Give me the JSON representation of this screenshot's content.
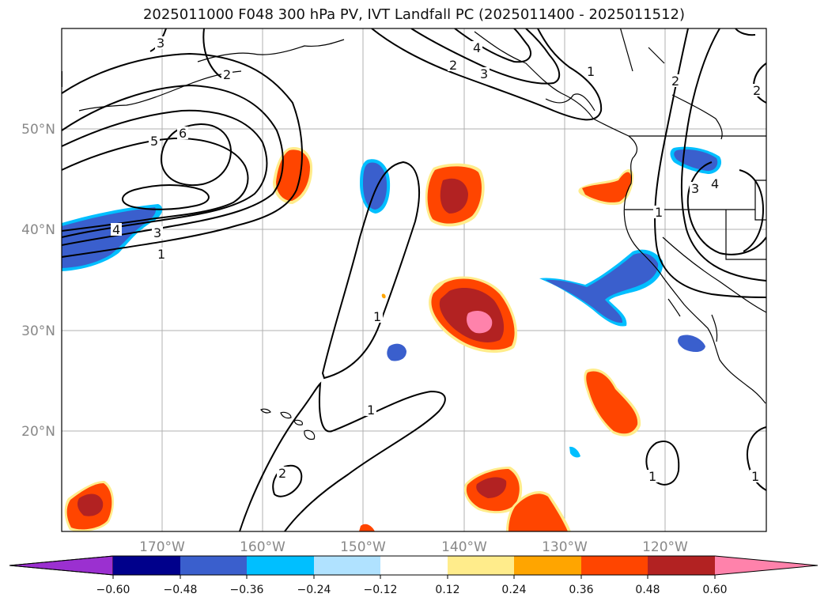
{
  "title": "2025011000 F048 300 hPa PV, IVT Landfall PC (2025011400 - 2025011512)",
  "lat_labels": [
    "50°N",
    "40°N",
    "30°N",
    "20°N"
  ],
  "lon_labels": [
    "170°W",
    "160°W",
    "150°W",
    "140°W",
    "130°W",
    "120°W"
  ],
  "colorbar": {
    "ticks": [
      "−0.60",
      "−0.48",
      "−0.36",
      "−0.24",
      "−0.12",
      "0.12",
      "0.24",
      "0.36",
      "0.48",
      "0.60"
    ],
    "colors": [
      "#9b30d0",
      "#00008b",
      "#3a5fcd",
      "#00bfff",
      "#b0e2ff",
      "#ffffff",
      "#ffec8b",
      "#ffa500",
      "#ff4500",
      "#b22222",
      "#ff82ab"
    ]
  },
  "contour_labels": [
    "3",
    "2",
    "5",
    "6",
    "4",
    "3",
    "1",
    "2",
    "4",
    "3",
    "1",
    "2",
    "3",
    "4",
    "1",
    "1",
    "1",
    "2",
    "1",
    "1",
    "2"
  ],
  "colors": {
    "negative_strong": "#3a5fcd",
    "negative_light": "#00bfff",
    "positive": "#ff4500",
    "positive_strong": "#b22222",
    "positive_max": "#ff82ab"
  }
}
